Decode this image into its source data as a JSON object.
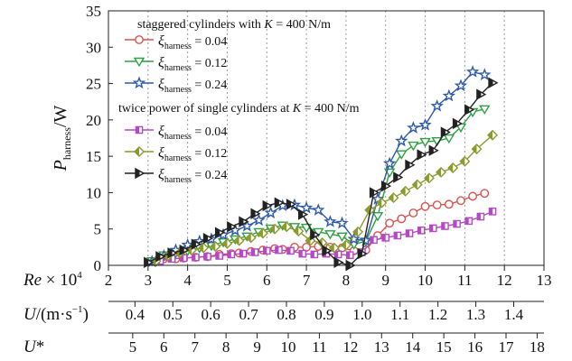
{
  "chart_data": {
    "type": "line",
    "ylabel": {
      "main": "P",
      "sub": "harness",
      "unit": "/W"
    },
    "ylim": [
      0,
      35
    ],
    "y_ticks": [
      0,
      5,
      10,
      15,
      20,
      25,
      30,
      35
    ],
    "grid": "vertical dotted",
    "axes": [
      {
        "label_main": "Re",
        "label_rest": " × 10",
        "label_sup": "4",
        "range": [
          2,
          13
        ],
        "ticks": [
          "2",
          "3",
          "4",
          "5",
          "6",
          "7",
          "8",
          "9",
          "10",
          "11",
          "12",
          "13"
        ]
      },
      {
        "label_main": "U",
        "label_rest": "/(m·s",
        "label_sup": "−1",
        "label_close": ")",
        "range": [
          0.33,
          1.48
        ],
        "ticks": [
          "0.4",
          "0.5",
          "0.6",
          "0.7",
          "0.8",
          "0.9",
          "1.0",
          "1.1",
          "1.2",
          "1.3",
          "1.4"
        ]
      },
      {
        "label_main": "U",
        "label_rest": "*",
        "range": [
          4.22,
          18.22
        ],
        "ticks": [
          "5",
          "6",
          "7",
          "8",
          "9",
          "10",
          "11",
          "12",
          "13",
          "14",
          "15",
          "16",
          "17",
          "18"
        ]
      }
    ],
    "legend": {
      "placement": "top-left",
      "group1_title": {
        "pre": "staggered cylinders with ",
        "k": "K",
        "post": " = 400 N/m"
      },
      "group2_title": {
        "pre": "twice power of single cylinders at ",
        "k": "K",
        "post": " = 400 N/m"
      },
      "xi_symbol": "ξ",
      "xi_sub": "harness"
    },
    "series": [
      {
        "group": 1,
        "xi_value": " = 0.04",
        "color": "#d9534f",
        "marker": "circle",
        "x": [
          3.2,
          3.4,
          3.7,
          3.9,
          4.2,
          4.5,
          4.8,
          5.1,
          5.3,
          5.6,
          5.9,
          6.2,
          6.4,
          6.7,
          7.0,
          7.3,
          7.6,
          7.9,
          8.2,
          8.5,
          8.8,
          9.1,
          9.4,
          9.7,
          10.0,
          10.3,
          10.6,
          10.9,
          11.2,
          11.5
        ],
        "y": [
          0.5,
          0.9,
          0.9,
          1.0,
          1.1,
          1.2,
          1.5,
          1.6,
          1.7,
          1.9,
          2.1,
          2.3,
          2.2,
          2.5,
          2.5,
          2.6,
          2.5,
          2.4,
          2.0,
          2.1,
          4.1,
          5.8,
          6.4,
          7.2,
          8.1,
          8.3,
          8.4,
          8.9,
          9.5,
          9.9
        ]
      },
      {
        "group": 1,
        "xi_value": " = 0.12",
        "color": "#2ea043",
        "marker": "triangle-down",
        "x": [
          3.1,
          3.4,
          3.7,
          4.0,
          4.3,
          4.6,
          4.9,
          5.2,
          5.5,
          5.8,
          6.1,
          6.4,
          6.7,
          7.0,
          7.3,
          7.6,
          7.9,
          8.2,
          8.5,
          8.8,
          9.1,
          9.4,
          9.7,
          10.0,
          10.3,
          10.6,
          10.9,
          11.2,
          11.5
        ],
        "y": [
          0.6,
          1.4,
          1.7,
          2.0,
          2.4,
          2.7,
          3.2,
          3.6,
          4.0,
          4.6,
          5.1,
          5.5,
          5.3,
          5.2,
          4.6,
          4.3,
          4.0,
          2.9,
          3.3,
          6.8,
          12.8,
          15.3,
          16.5,
          17.0,
          17.1,
          17.5,
          19.0,
          21.1,
          21.5
        ]
      },
      {
        "group": 1,
        "xi_value": " = 0.24",
        "color": "#2f5aa8",
        "marker": "star",
        "x": [
          3.1,
          3.4,
          3.7,
          4.0,
          4.3,
          4.6,
          4.9,
          5.2,
          5.5,
          5.8,
          6.1,
          6.4,
          6.7,
          7.0,
          7.3,
          7.6,
          7.9,
          8.2,
          8.5,
          8.8,
          9.1,
          9.4,
          9.7,
          10.0,
          10.3,
          10.6,
          10.9,
          11.2,
          11.5
        ],
        "y": [
          0.5,
          1.3,
          2.1,
          2.8,
          3.3,
          3.6,
          4.2,
          4.8,
          5.4,
          6.2,
          7.2,
          8.2,
          8.3,
          7.9,
          7.6,
          6.0,
          5.8,
          3.6,
          3.4,
          9.1,
          14.0,
          17.1,
          18.9,
          19.3,
          21.9,
          23.3,
          24.7,
          26.6,
          26.2
        ]
      },
      {
        "group": 2,
        "xi_value": " = 0.04",
        "color": "#b548c6",
        "marker": "square",
        "x": [
          3.3,
          3.6,
          3.9,
          4.2,
          4.5,
          4.8,
          5.1,
          5.4,
          5.7,
          6.0,
          6.3,
          6.6,
          6.9,
          7.2,
          7.5,
          7.8,
          8.1,
          8.4,
          8.7,
          9.0,
          9.3,
          9.6,
          9.9,
          10.2,
          10.5,
          10.8,
          11.1,
          11.4,
          11.7
        ],
        "y": [
          0.6,
          0.9,
          1.0,
          1.1,
          1.2,
          1.3,
          1.5,
          1.6,
          1.8,
          2.0,
          2.1,
          2.0,
          1.6,
          1.5,
          1.6,
          1.5,
          1.4,
          1.8,
          3.5,
          3.8,
          4.1,
          4.4,
          4.8,
          5.1,
          5.4,
          5.7,
          6.1,
          6.7,
          7.4
        ]
      },
      {
        "group": 2,
        "xi_value": " = 0.12",
        "color": "#8c9a2e",
        "marker": "diamond",
        "x": [
          3.2,
          3.5,
          3.8,
          4.1,
          4.4,
          4.7,
          5.0,
          5.3,
          5.6,
          5.9,
          6.2,
          6.5,
          6.8,
          7.1,
          7.4,
          7.7,
          8.0,
          8.3,
          8.6,
          8.9,
          9.2,
          9.5,
          9.8,
          10.1,
          10.4,
          10.7,
          11.0,
          11.3,
          11.7
        ],
        "y": [
          0.6,
          1.3,
          1.7,
          2.1,
          2.4,
          2.6,
          3.0,
          3.4,
          3.8,
          4.4,
          5.0,
          5.3,
          4.7,
          3.4,
          3.1,
          2.4,
          2.8,
          4.6,
          7.6,
          8.6,
          9.3,
          10.2,
          11.1,
          12.0,
          12.8,
          13.4,
          14.3,
          16.0,
          17.9
        ]
      },
      {
        "group": 2,
        "xi_value": " = 0.24",
        "color": "#222222",
        "marker": "triangle-right",
        "x": [
          3.0,
          3.3,
          3.6,
          3.9,
          4.2,
          4.5,
          4.8,
          5.1,
          5.4,
          5.7,
          6.0,
          6.3,
          6.6,
          6.9,
          7.2,
          7.5,
          7.8,
          8.1,
          8.4,
          8.7,
          9.0,
          9.3,
          9.6,
          9.9,
          10.2,
          10.5,
          10.8,
          11.1,
          11.4,
          11.7
        ],
        "y": [
          0.4,
          1.2,
          1.7,
          2.1,
          2.9,
          3.7,
          4.5,
          5.3,
          6.0,
          7.1,
          8.2,
          8.6,
          8.4,
          7.0,
          4.2,
          2.0,
          0.4,
          0.0,
          1.6,
          10.0,
          10.9,
          12.1,
          13.8,
          15.2,
          15.8,
          18.3,
          19.5,
          21.4,
          23.5,
          25.1
        ]
      }
    ]
  }
}
